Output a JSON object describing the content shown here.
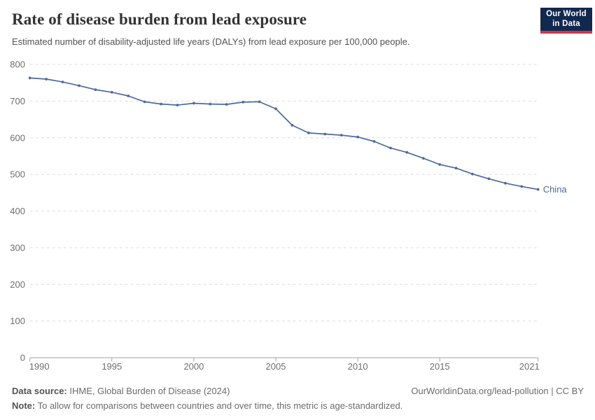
{
  "header": {
    "title": "Rate of disease burden from lead exposure",
    "subtitle": "Estimated number of disability-adjusted life years (DALYs) from lead exposure per 100,000 people."
  },
  "logo": {
    "line1": "Our World",
    "line2": "in Data"
  },
  "chart_data": {
    "type": "line",
    "title": "Rate of disease burden from lead exposure",
    "xlabel": "",
    "ylabel": "",
    "x": [
      1990,
      1991,
      1992,
      1993,
      1994,
      1995,
      1996,
      1997,
      1998,
      1999,
      2000,
      2001,
      2002,
      2003,
      2004,
      2005,
      2006,
      2007,
      2008,
      2009,
      2010,
      2011,
      2012,
      2013,
      2014,
      2015,
      2016,
      2017,
      2018,
      2019,
      2020,
      2021
    ],
    "series": [
      {
        "name": "China",
        "color": "#4C6B9C",
        "values": [
          763,
          760,
          752,
          742,
          731,
          724,
          714,
          698,
          692,
          689,
          694,
          692,
          691,
          697,
          698,
          679,
          634,
          613,
          610,
          607,
          602,
          590,
          572,
          560,
          544,
          527,
          517,
          501,
          488,
          476,
          467,
          459
        ]
      }
    ],
    "x_ticks": [
      1990,
      1995,
      2000,
      2005,
      2010,
      2015,
      2021
    ],
    "y_ticks": [
      0,
      100,
      200,
      300,
      400,
      500,
      600,
      700,
      800
    ],
    "xlim": [
      1990,
      2021
    ],
    "ylim": [
      0,
      800
    ],
    "grid": "horizontal-dashed",
    "legend_position": "end-of-line-label"
  },
  "footer": {
    "source_label": "Data source:",
    "source_text": "IHME, Global Burden of Disease (2024)",
    "credit": "OurWorldinData.org/lead-pollution | CC BY",
    "note_label": "Note:",
    "note_text": "To allow for comparisons between countries and over time, this metric is age-standardized."
  },
  "colors": {
    "line": "#4C6B9C",
    "logo_bg": "#12294F",
    "logo_accent": "#D0374B",
    "grid": "#DCDCDC",
    "axis": "#A3A3A3",
    "tick_text": "#6E6E6E"
  }
}
